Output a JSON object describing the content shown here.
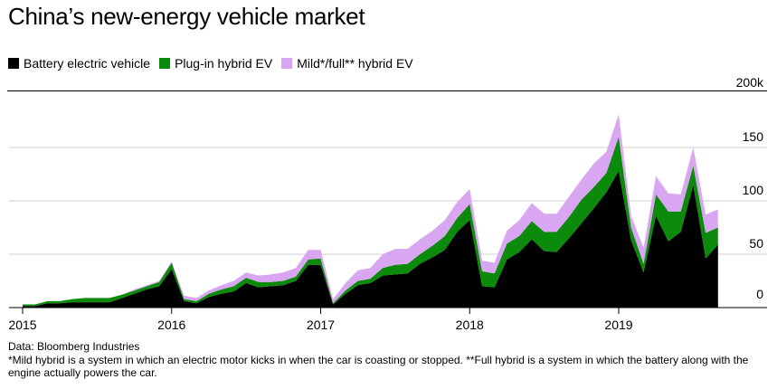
{
  "title": "China’s new-energy vehicle market",
  "legend": [
    {
      "label": "Battery electric vehicle",
      "color": "#000000"
    },
    {
      "label": "Plug-in hybrid EV",
      "color": "#0b8a0b"
    },
    {
      "label": "Mild*/full** hybrid EV",
      "color": "#d9a6f2"
    }
  ],
  "source": "Data: Bloomberg Industries",
  "note": "*Mild hybrid is a system in which an electric motor kicks in when the car is coasting or stopped. **Full hybrid is a system in which the battery along with the engine actually powers the car.",
  "chart_data": {
    "type": "area",
    "stacked": true,
    "x_labels": [
      "2015",
      "2016",
      "2017",
      "2018",
      "2019"
    ],
    "y_ticks": [
      {
        "value": 0,
        "label": "0"
      },
      {
        "value": 50,
        "label": "50"
      },
      {
        "value": 100,
        "label": "100"
      },
      {
        "value": 150,
        "label": "150"
      },
      {
        "value": 200,
        "label": "200k"
      }
    ],
    "ylim": [
      0,
      200
    ],
    "grid": true,
    "legend_position": "top-left",
    "x": [
      "2015-01",
      "2015-02",
      "2015-03",
      "2015-04",
      "2015-05",
      "2015-06",
      "2015-07",
      "2015-08",
      "2015-09",
      "2015-10",
      "2015-11",
      "2015-12",
      "2016-01",
      "2016-02",
      "2016-03",
      "2016-04",
      "2016-05",
      "2016-06",
      "2016-07",
      "2016-08",
      "2016-09",
      "2016-10",
      "2016-11",
      "2016-12",
      "2017-01",
      "2017-02",
      "2017-03",
      "2017-04",
      "2017-05",
      "2017-06",
      "2017-07",
      "2017-08",
      "2017-09",
      "2017-10",
      "2017-11",
      "2017-12",
      "2018-01",
      "2018-02",
      "2018-03",
      "2018-04",
      "2018-05",
      "2018-06",
      "2018-07",
      "2018-08",
      "2018-09",
      "2018-10",
      "2018-11",
      "2018-12",
      "2019-01",
      "2019-02",
      "2019-03",
      "2019-04",
      "2019-05",
      "2019-06",
      "2019-07",
      "2019-08",
      "2019-09"
    ],
    "series": [
      {
        "name": "Battery electric vehicle",
        "color": "#000000",
        "values": [
          1.5,
          1.5,
          4,
          4,
          5,
          5,
          5,
          5,
          9,
          13,
          17,
          20,
          36,
          6,
          4,
          10,
          13,
          15,
          23,
          19,
          20,
          21,
          25,
          40,
          40,
          3,
          13,
          21,
          23,
          30,
          31,
          32,
          41,
          47,
          54,
          71,
          82,
          20,
          19,
          45,
          52,
          64,
          53,
          52,
          65,
          79,
          93,
          108,
          128,
          63,
          33,
          86,
          62,
          71,
          115,
          46,
          59
        ]
      },
      {
        "name": "Plug-in hybrid EV",
        "color": "#0b8a0b",
        "values": [
          1.5,
          1.5,
          2,
          2,
          3,
          4,
          4,
          4,
          3,
          3,
          3,
          4,
          6,
          2,
          2,
          3,
          4,
          5,
          5,
          5,
          4,
          4,
          4,
          5,
          6,
          1,
          3,
          4,
          4,
          7,
          9,
          9,
          9,
          11,
          13,
          13,
          15,
          14,
          13,
          15,
          15,
          17,
          18,
          19,
          20,
          22,
          20,
          18,
          32,
          12,
          8,
          20,
          28,
          19,
          18,
          24,
          16
        ]
      },
      {
        "name": "Mild*/full** hybrid EV",
        "color": "#d9a6f2",
        "values": [
          0,
          0,
          0,
          0,
          0,
          0,
          0,
          0,
          0,
          1,
          1,
          1,
          1,
          3,
          3,
          3,
          4,
          5,
          5,
          6,
          7,
          8,
          8,
          9,
          8,
          4,
          7,
          10,
          10,
          13,
          15,
          14,
          14,
          14,
          15,
          15,
          14,
          10,
          10,
          12,
          15,
          17,
          17,
          17,
          19,
          19,
          22,
          20,
          21,
          11,
          15,
          17,
          17,
          16,
          17,
          17,
          17
        ]
      }
    ]
  }
}
